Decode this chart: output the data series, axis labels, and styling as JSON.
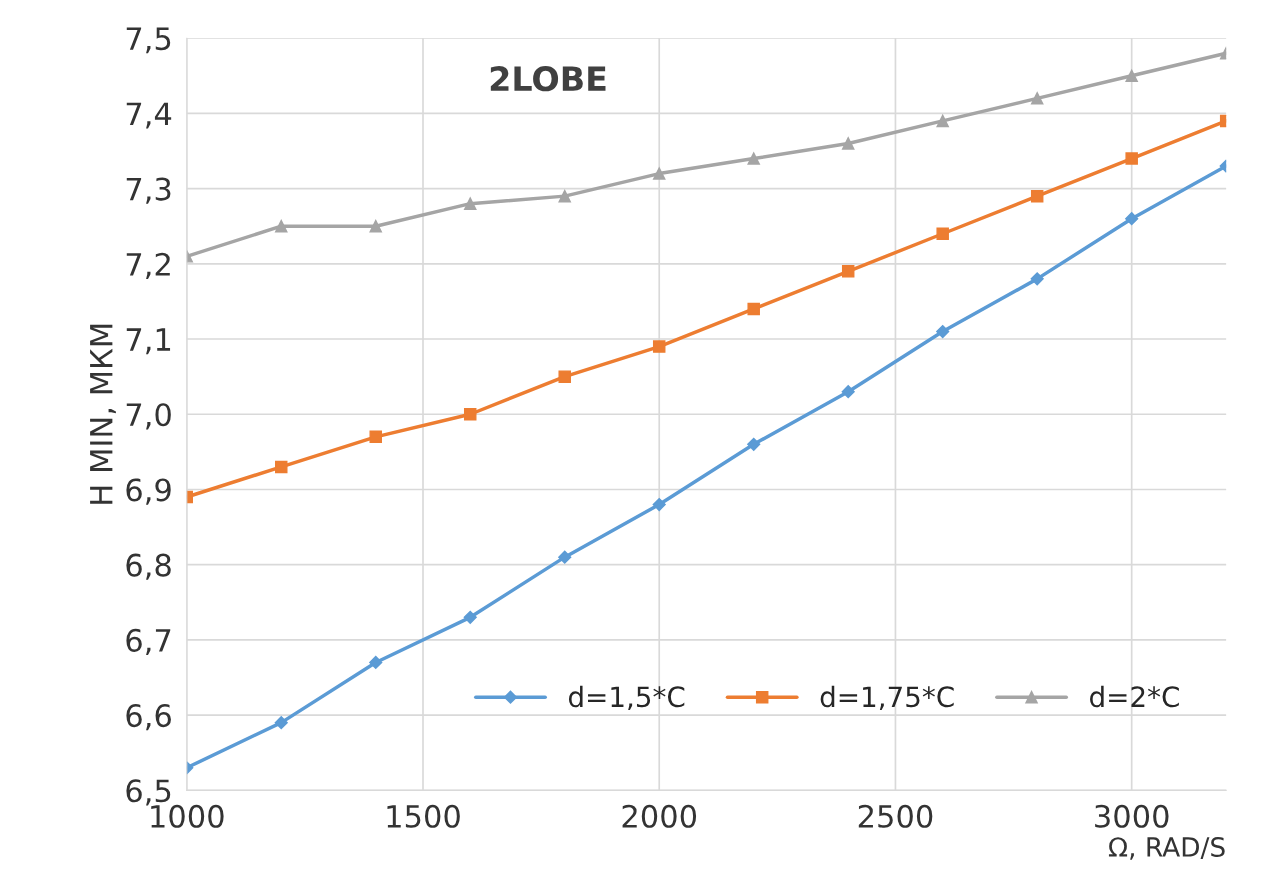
{
  "chart_data": {
    "type": "line",
    "annotations": [
      "2LOBE"
    ],
    "xlabel": "Ω, RAD/S",
    "ylabel": "H MIN, МКМ",
    "x": [
      1000,
      1200,
      1400,
      1600,
      1800,
      2000,
      2200,
      2400,
      2600,
      2800,
      3000,
      3200
    ],
    "series": [
      {
        "name": "d=1,5*C",
        "color": "#5b9bd5",
        "marker": "diamond",
        "values": [
          6.53,
          6.59,
          6.67,
          6.73,
          6.81,
          6.88,
          6.96,
          7.03,
          7.11,
          7.18,
          7.26,
          7.33
        ]
      },
      {
        "name": "d=1,75*C",
        "color": "#ed7d31",
        "marker": "square",
        "values": [
          6.89,
          6.93,
          6.97,
          7.0,
          7.05,
          7.09,
          7.14,
          7.19,
          7.24,
          7.29,
          7.34,
          7.39
        ]
      },
      {
        "name": "d=2*C",
        "color": "#a5a5a5",
        "marker": "triangle",
        "values": [
          7.21,
          7.25,
          7.25,
          7.28,
          7.29,
          7.32,
          7.34,
          7.36,
          7.39,
          7.42,
          7.45,
          7.48
        ]
      }
    ],
    "xlim": [
      1000,
      3200
    ],
    "xticks": [
      1000,
      1500,
      2000,
      2500,
      3000
    ],
    "ylim": [
      6.5,
      7.5
    ],
    "yticks": [
      {
        "value": 6.5,
        "label": "6,5"
      },
      {
        "value": 6.6,
        "label": "6,6"
      },
      {
        "value": 6.7,
        "label": "6,7"
      },
      {
        "value": 6.8,
        "label": "6,8"
      },
      {
        "value": 6.9,
        "label": "6,9"
      },
      {
        "value": 7.0,
        "label": "7,0"
      },
      {
        "value": 7.1,
        "label": "7,1"
      },
      {
        "value": 7.2,
        "label": "7,2"
      },
      {
        "value": 7.3,
        "label": "7,3"
      },
      {
        "value": 7.4,
        "label": "7,4"
      },
      {
        "value": 7.5,
        "label": "7,5"
      }
    ],
    "grid": true,
    "legend": "bottom right",
    "line_style": "solid"
  }
}
